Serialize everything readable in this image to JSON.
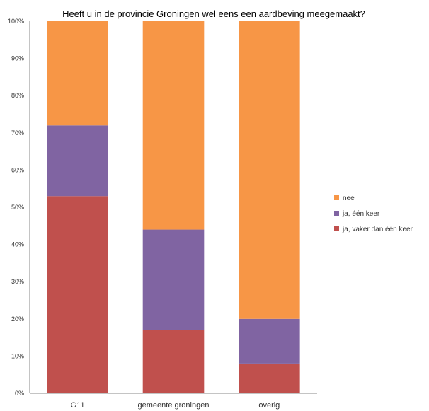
{
  "chart_data": {
    "type": "bar",
    "stacked": true,
    "title": "Heeft u in de provincie Groningen wel eens een aardbeving meegemaakt?",
    "categories": [
      "G11",
      "gemeente groningen",
      "overig"
    ],
    "series": [
      {
        "name": "ja, vaker dan één keer",
        "color": "#c0504d",
        "values": [
          53,
          17,
          8
        ]
      },
      {
        "name": "ja, één keer",
        "color": "#8064a2",
        "values": [
          19,
          27,
          12
        ]
      },
      {
        "name": "nee",
        "color": "#f79646",
        "values": [
          28,
          56,
          80
        ]
      }
    ],
    "legend_order": [
      "nee",
      "ja, één keer",
      "ja, vaker dan één keer"
    ],
    "ylim": [
      0,
      100
    ],
    "yticks": [
      "0%",
      "10%",
      "20%",
      "30%",
      "40%",
      "50%",
      "60%",
      "70%",
      "80%",
      "90%",
      "100%"
    ],
    "grid": false,
    "legend": "right"
  }
}
